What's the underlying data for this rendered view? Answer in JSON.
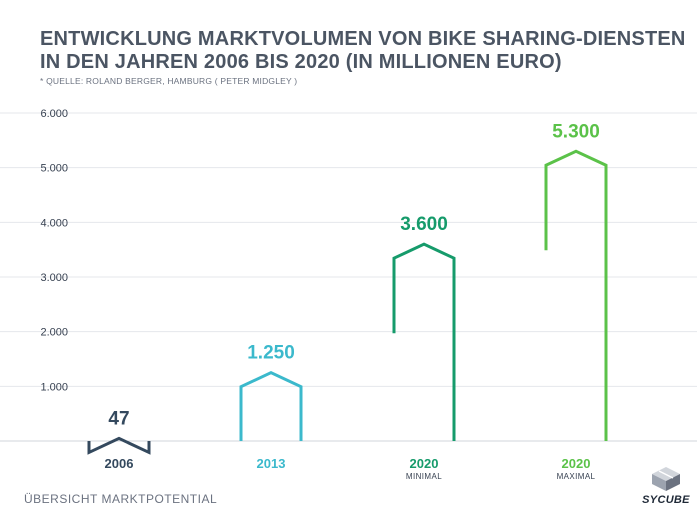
{
  "title_line1": "ENTWICKLUNG MARKTVOLUMEN VON BIKE SHARING-DIENSTEN",
  "title_line2": "IN DEN JAHREN 2006 BIS 2020 (IN MILLIONEN EURO)",
  "subtitle": "* QUELLE: ROLAND BERGER, HAMBURG ( PETER MIDGLEY )",
  "footer": "ÜBERSICHT MARKTPOTENTIAL",
  "logo_text": "SYCUBE",
  "chart_data": {
    "type": "bar",
    "title": "ENTWICKLUNG MARKTVOLUMEN VON BIKE SHARING-DIENSTEN IN DEN JAHREN 2006 BIS 2020 (IN MILLIONEN EURO)",
    "categories": [
      "2006",
      "2013",
      "2020",
      "2020"
    ],
    "sublabels": [
      "",
      "",
      "MINIMAL",
      "MAXIMAL"
    ],
    "values": [
      47,
      1250,
      3600,
      5300
    ],
    "value_labels": [
      "47",
      "1.250",
      "3.600",
      "5.300"
    ],
    "colors": [
      "#34495e",
      "#3bb9cc",
      "#169b6b",
      "#5bc249"
    ],
    "ylim": [
      0,
      6000
    ],
    "yticks": [
      1000,
      2000,
      3000,
      4000,
      5000,
      6000
    ],
    "ytick_labels": [
      "1.000",
      "2.000",
      "3.000",
      "4.000",
      "5.000",
      "6.000"
    ],
    "grid": true,
    "xlabel": "",
    "ylabel": ""
  }
}
